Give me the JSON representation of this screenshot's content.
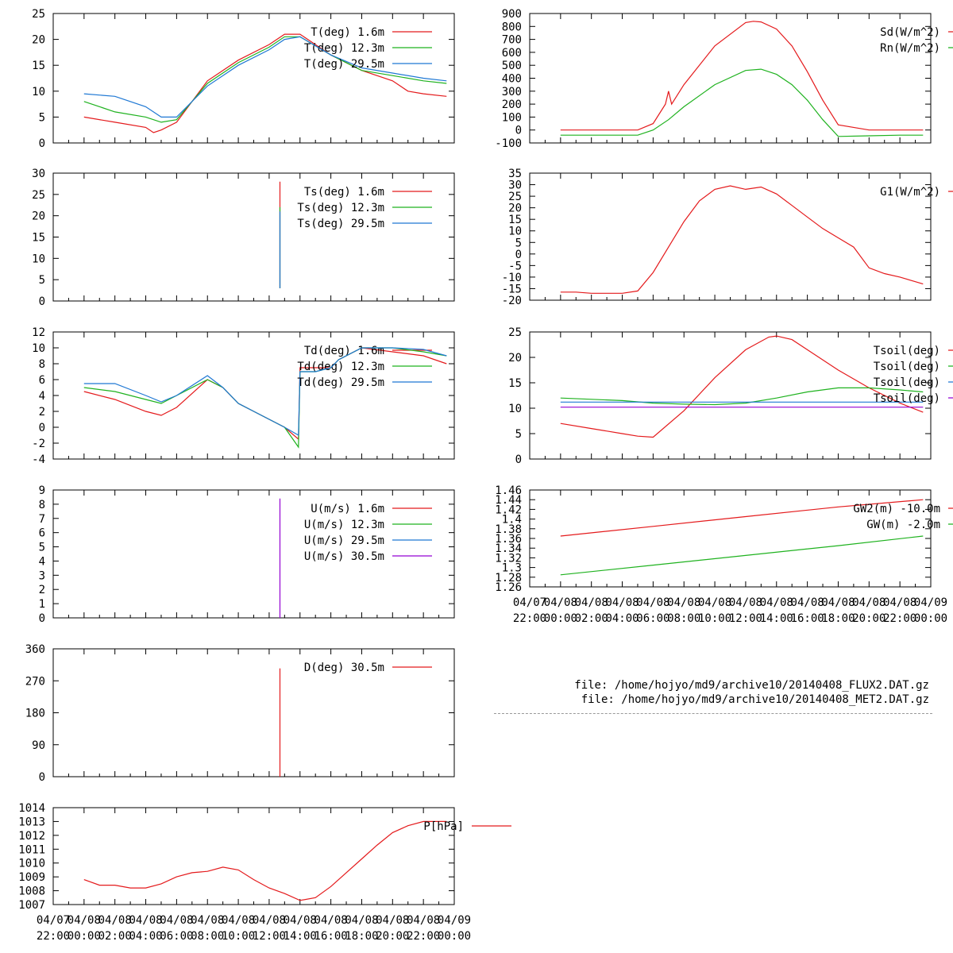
{
  "files": [
    "file: /home/hojyo/md9/archive10/20140408_FLUX2.DAT.gz",
    "file: /home/hojyo/md9/archive10/20140408_MET2.DAT.gz"
  ],
  "time_axis": {
    "x_range": [
      -2,
      24
    ],
    "tick_labels_top": [
      "04/07",
      "04/08",
      "04/08",
      "04/08",
      "04/08",
      "04/08",
      "04/08",
      "04/08",
      "04/08",
      "04/08",
      "04/08",
      "04/08",
      "04/08",
      "04/09"
    ],
    "tick_labels_bottom": [
      "22:00",
      "00:00",
      "02:00",
      "04:00",
      "06:00",
      "08:00",
      "10:00",
      "12:00",
      "14:00",
      "16:00",
      "18:00",
      "20:00",
      "22:00",
      "00:00"
    ]
  },
  "colors": {
    "red": "#e41a1c",
    "green": "#1fb21f",
    "blue": "#1f78d4",
    "purple": "#9400d3"
  },
  "chart_data": [
    {
      "id": "temp",
      "type": "line",
      "ylim": [
        0,
        25
      ],
      "yticks": [
        0,
        5,
        10,
        15,
        20,
        25
      ],
      "series": [
        {
          "name": "T(deg)  1.6m",
          "color": "#e41a1c",
          "x": [
            0,
            2,
            4,
            4.5,
            5,
            6,
            8,
            10,
            12,
            13,
            14,
            16,
            18,
            20,
            21,
            22,
            23.5
          ],
          "y": [
            5,
            4,
            3,
            2,
            2.5,
            4,
            12,
            16,
            19,
            21,
            21,
            17,
            14,
            12,
            10,
            9.5,
            9
          ]
        },
        {
          "name": "T(deg) 12.3m",
          "color": "#1fb21f",
          "x": [
            0,
            2,
            4,
            5,
            6,
            8,
            10,
            12,
            13,
            14,
            16,
            18,
            20,
            22,
            23.5
          ],
          "y": [
            8,
            6,
            5,
            4,
            4.5,
            11.5,
            15.5,
            18.5,
            20.5,
            20.5,
            17,
            14,
            13,
            12,
            11.5
          ]
        },
        {
          "name": "T(deg) 29.5m",
          "color": "#1f78d4",
          "x": [
            0,
            2,
            4,
            5,
            6,
            8,
            10,
            12,
            13,
            14,
            16,
            18,
            20,
            22,
            23.5
          ],
          "y": [
            9.5,
            9,
            7,
            5,
            5,
            11,
            15,
            18,
            20,
            20.5,
            17,
            14.5,
            13.5,
            12.5,
            12
          ]
        }
      ]
    },
    {
      "id": "soil-surface-temp",
      "type": "line",
      "ylim": [
        0,
        30
      ],
      "yticks": [
        0,
        5,
        10,
        15,
        20,
        25,
        30
      ],
      "series": [
        {
          "name": "Ts(deg)  1.6m",
          "color": "#e41a1c",
          "x": [
            12.7,
            12.7
          ],
          "y": [
            3,
            28
          ]
        },
        {
          "name": "Ts(deg) 12.3m",
          "color": "#1fb21f",
          "x": [
            12.7,
            12.7
          ],
          "y": [
            3,
            22
          ]
        },
        {
          "name": "Ts(deg) 29.5m",
          "color": "#1f78d4",
          "x": [
            12.7,
            12.7
          ],
          "y": [
            3,
            21
          ]
        }
      ]
    },
    {
      "id": "dewpoint",
      "type": "line",
      "ylim": [
        -4,
        12
      ],
      "yticks": [
        -4,
        -2,
        0,
        2,
        4,
        6,
        8,
        10,
        12
      ],
      "series": [
        {
          "name": "Td(deg)  1.6m",
          "color": "#e41a1c",
          "x": [
            0,
            2,
            4,
            5,
            6,
            8,
            9,
            10,
            11,
            12,
            13,
            13.9,
            14,
            15,
            16,
            16.5,
            18,
            20,
            22,
            23.5
          ],
          "y": [
            4.5,
            3.5,
            2,
            1.5,
            2.5,
            6,
            5,
            3,
            2,
            1,
            0,
            -1.5,
            7.5,
            7.5,
            7.5,
            8.5,
            10,
            9.5,
            9,
            8
          ]
        },
        {
          "name": "Td(deg) 12.3m",
          "color": "#1fb21f",
          "x": [
            0,
            2,
            4,
            5,
            6,
            8,
            9,
            10,
            11,
            12,
            13,
            13.9,
            14,
            15,
            16,
            16.5,
            18,
            20,
            22,
            23.5
          ],
          "y": [
            5,
            4.5,
            3.5,
            3,
            4,
            6,
            5,
            3,
            2,
            1,
            0,
            -2.5,
            7,
            7,
            7.5,
            8.5,
            10,
            10,
            9.5,
            9
          ]
        },
        {
          "name": "Td(deg) 29.5m",
          "color": "#1f78d4",
          "x": [
            0,
            2,
            4,
            5,
            6,
            8,
            9,
            10,
            11,
            12,
            13,
            13.9,
            14,
            15,
            16,
            16.5,
            18,
            20,
            22,
            23.5
          ],
          "y": [
            5.5,
            5.5,
            4,
            3.2,
            4,
            6.5,
            5,
            3,
            2,
            1,
            0,
            -1,
            7,
            7,
            7.5,
            8.5,
            10,
            10,
            9.8,
            9
          ]
        }
      ]
    },
    {
      "id": "wind-speed",
      "type": "line",
      "ylim": [
        0,
        9
      ],
      "yticks": [
        0,
        1,
        2,
        3,
        4,
        5,
        6,
        7,
        8,
        9
      ],
      "series": [
        {
          "name": "U(m/s)  1.6m",
          "color": "#e41a1c",
          "x": [],
          "y": []
        },
        {
          "name": "U(m/s) 12.3m",
          "color": "#1fb21f",
          "x": [],
          "y": []
        },
        {
          "name": "U(m/s) 29.5m",
          "color": "#1f78d4",
          "x": [],
          "y": []
        },
        {
          "name": "U(m/s) 30.5m",
          "color": "#9400d3",
          "x": [
            12.7,
            12.7
          ],
          "y": [
            0,
            8.4
          ]
        }
      ]
    },
    {
      "id": "wind-direction",
      "type": "line",
      "ylim": [
        0,
        360
      ],
      "yticks": [
        0,
        90,
        180,
        270,
        360
      ],
      "series": [
        {
          "name": "D(deg)  30.5m",
          "color": "#e41a1c",
          "x": [
            12.7,
            12.7
          ],
          "y": [
            0,
            305
          ]
        }
      ]
    },
    {
      "id": "pressure",
      "type": "line",
      "ylim": [
        1007,
        1014
      ],
      "yticks": [
        1007,
        1008,
        1009,
        1010,
        1011,
        1012,
        1013,
        1014
      ],
      "series": [
        {
          "name": "P[hPa]",
          "color": "#e41a1c",
          "x": [
            0,
            1,
            2,
            3,
            4,
            5,
            6,
            7,
            8,
            9,
            10,
            11,
            12,
            13,
            14,
            15,
            16,
            17,
            18,
            19,
            20,
            21,
            22,
            23,
            23.5
          ],
          "y": [
            1008.8,
            1008.4,
            1008.4,
            1008.2,
            1008.2,
            1008.5,
            1009,
            1009.3,
            1009.4,
            1009.7,
            1009.5,
            1008.8,
            1008.2,
            1007.8,
            1007.3,
            1007.5,
            1008.3,
            1009.3,
            1010.3,
            1011.3,
            1012.2,
            1012.7,
            1013,
            1013,
            1013
          ]
        }
      ]
    },
    {
      "id": "radiation",
      "type": "line",
      "ylim": [
        -100,
        900
      ],
      "yticks": [
        -100,
        0,
        100,
        200,
        300,
        400,
        500,
        600,
        700,
        800,
        900
      ],
      "series": [
        {
          "name": "Sd(W/m^2)",
          "color": "#e41a1c",
          "x": [
            0,
            2,
            4,
            5,
            6,
            6.8,
            7,
            7.2,
            8,
            10,
            12,
            12.5,
            13,
            14,
            15,
            16,
            17,
            18,
            20,
            22,
            23.5
          ],
          "y": [
            0,
            0,
            0,
            0,
            50,
            200,
            300,
            200,
            350,
            650,
            830,
            840,
            835,
            780,
            650,
            450,
            230,
            40,
            0,
            0,
            0
          ]
        },
        {
          "name": "Rn(W/m^2)",
          "color": "#1fb21f",
          "x": [
            0,
            2,
            4,
            5,
            6,
            7,
            8,
            10,
            12,
            13,
            14,
            15,
            16,
            17,
            18,
            20,
            22,
            23.5
          ],
          "y": [
            -40,
            -40,
            -40,
            -40,
            0,
            80,
            180,
            350,
            460,
            470,
            430,
            350,
            230,
            80,
            -50,
            -45,
            -40,
            -40
          ]
        }
      ]
    },
    {
      "id": "soil-heat-flux",
      "type": "line",
      "ylim": [
        -20,
        35
      ],
      "yticks": [
        -20,
        -15,
        -10,
        -5,
        0,
        5,
        10,
        15,
        20,
        25,
        30,
        35
      ],
      "series": [
        {
          "name": "G1(W/m^2)",
          "color": "#e41a1c",
          "x": [
            0,
            1,
            2,
            3,
            4,
            5,
            6,
            7,
            8,
            9,
            10,
            11,
            12,
            13,
            14,
            15,
            16,
            17,
            18,
            19,
            20,
            21,
            22,
            23,
            23.5
          ],
          "y": [
            -16.5,
            -16.5,
            -17,
            -17,
            -17,
            -16,
            -8,
            3,
            14,
            23,
            28,
            29.5,
            28,
            29,
            26,
            21,
            16,
            11,
            7,
            3,
            -6,
            -8.5,
            -10,
            -12,
            -13
          ]
        }
      ]
    },
    {
      "id": "soil-temp",
      "type": "line",
      "ylim": [
        0,
        25
      ],
      "yticks": [
        0,
        5,
        10,
        15,
        20,
        25
      ],
      "series": [
        {
          "name": "Tsoil(deg)",
          "color": "#e41a1c",
          "x": [
            0,
            2,
            4,
            5,
            6,
            8,
            10,
            12,
            13.5,
            14,
            15,
            16,
            18,
            20,
            22,
            23.5
          ],
          "y": [
            7,
            6,
            5,
            4.5,
            4.3,
            9.5,
            16,
            21.5,
            24,
            24.2,
            23.5,
            21.5,
            17.5,
            14,
            11,
            9.2
          ]
        },
        {
          "name": "Tsoil(deg)",
          "color": "#1fb21f",
          "x": [
            0,
            4,
            6,
            8,
            10,
            12,
            14,
            16,
            18,
            20,
            22,
            23.5
          ],
          "y": [
            12,
            11.5,
            11,
            10.8,
            10.7,
            11,
            12,
            13.2,
            14,
            14,
            13.6,
            13.2
          ]
        },
        {
          "name": "Tsoil(deg)",
          "color": "#1f78d4",
          "x": [
            0,
            23.5
          ],
          "y": [
            11.2,
            11.2
          ]
        },
        {
          "name": "Tsoil(deg)",
          "color": "#9400d3",
          "x": [
            0,
            23.5
          ],
          "y": [
            10.2,
            10.2
          ]
        }
      ]
    },
    {
      "id": "groundwater",
      "type": "line",
      "ylim": [
        1.26,
        1.46
      ],
      "yticks": [
        1.26,
        1.28,
        1.3,
        1.32,
        1.34,
        1.36,
        1.38,
        1.4,
        1.42,
        1.44,
        1.46
      ],
      "series": [
        {
          "name": "GW2(m)  -10.0m",
          "color": "#e41a1c",
          "x": [
            0,
            6,
            12,
            18,
            23.5
          ],
          "y": [
            1.365,
            1.385,
            1.405,
            1.425,
            1.44
          ]
        },
        {
          "name": "GW(m)  -2.0m",
          "color": "#1fb21f",
          "x": [
            0,
            6,
            12,
            18,
            23.5
          ],
          "y": [
            1.285,
            1.305,
            1.325,
            1.345,
            1.365
          ]
        }
      ]
    }
  ]
}
